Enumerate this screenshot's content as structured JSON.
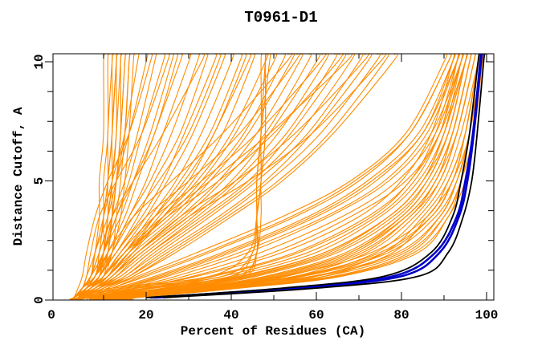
{
  "title": "T0961-D1",
  "axes": {
    "xlabel": "Percent of Residues (CA)",
    "ylabel": "Distance Cutoff, A",
    "x_tick_values_major": [
      20,
      40,
      60,
      80,
      100
    ],
    "x_tick_values_minor": [
      10,
      30,
      50,
      70,
      90
    ],
    "x_tick_labels": [
      {
        "value": 0,
        "label": "0"
      },
      {
        "value": 20,
        "label": "20"
      },
      {
        "value": 40,
        "label": "40"
      },
      {
        "value": 60,
        "label": "60"
      },
      {
        "value": 80,
        "label": "80"
      },
      {
        "value": 100,
        "label": "100"
      }
    ],
    "y_tick_values_major": [
      0,
      5,
      10
    ],
    "y_tick_values_minor": [
      1.25,
      2.5,
      3.75,
      6.25,
      7.5,
      8.75
    ],
    "y_tick_labels": [
      {
        "value": 0,
        "label": "0"
      },
      {
        "value": 5,
        "label": "5"
      },
      {
        "value": 10,
        "label": "10"
      }
    ]
  },
  "chart_data": {
    "type": "line",
    "title": "T0961-D1",
    "xlabel": "Percent of Residues (CA)",
    "ylabel": "Distance Cutoff, A",
    "xlim": [
      0,
      100
    ],
    "ylim": [
      0,
      10
    ],
    "grid": false,
    "legend": "none",
    "background": "#FFFFFF",
    "frame_color": "#000000",
    "cutoff_levels": [
      0.1,
      0.5,
      1,
      2,
      3.5,
      5,
      7,
      10
    ],
    "note": "Each curve lists percent of CA residues (x) at each distance cutoff level (y).",
    "series_groups": [
      {
        "name": "server-model-curves",
        "color": "#FF8C00",
        "width": 1.1,
        "root_at_bottom": true,
        "extend_to_top": true,
        "curves": [
          [
            3,
            5,
            7,
            8,
            9,
            9,
            10,
            10
          ],
          [
            3,
            5,
            8,
            9,
            10,
            10,
            11,
            11
          ],
          [
            4,
            6,
            8,
            10,
            10,
            11,
            11,
            12
          ],
          [
            3,
            6,
            9,
            10,
            11,
            11,
            12,
            12
          ],
          [
            4,
            7,
            9,
            10,
            11,
            12,
            12,
            13
          ],
          [
            3,
            5,
            8,
            10,
            11,
            12,
            13,
            13
          ],
          [
            4,
            6,
            9,
            11,
            12,
            12,
            13,
            14
          ],
          [
            3,
            6,
            8,
            10,
            12,
            13,
            14,
            14
          ],
          [
            4,
            7,
            10,
            11,
            12,
            13,
            14,
            15
          ],
          [
            3,
            5,
            7,
            10,
            12,
            13,
            15,
            16
          ],
          [
            4,
            6,
            9,
            12,
            13,
            14,
            15,
            16
          ],
          [
            3,
            6,
            10,
            12,
            14,
            15,
            16,
            17
          ],
          [
            3,
            5,
            8,
            9,
            10,
            11,
            12,
            13
          ],
          [
            4,
            6,
            8,
            11,
            12,
            13,
            14,
            15
          ],
          [
            3,
            5,
            6,
            8,
            10,
            12,
            15,
            18
          ],
          [
            3,
            5,
            7,
            8,
            11,
            13,
            16,
            20
          ],
          [
            4,
            6,
            7,
            9,
            12,
            15,
            18,
            22
          ],
          [
            3,
            5,
            7,
            10,
            13,
            16,
            19,
            24
          ],
          [
            4,
            6,
            8,
            10,
            14,
            17,
            21,
            26
          ],
          [
            3,
            6,
            8,
            11,
            15,
            18,
            22,
            28
          ],
          [
            4,
            6,
            9,
            12,
            16,
            20,
            24,
            30
          ],
          [
            3,
            5,
            8,
            12,
            16,
            21,
            26,
            32
          ],
          [
            4,
            7,
            9,
            13,
            18,
            22,
            28,
            34
          ],
          [
            3,
            6,
            9,
            13,
            19,
            24,
            29,
            36
          ],
          [
            4,
            6,
            10,
            14,
            20,
            25,
            31,
            38
          ],
          [
            3,
            7,
            10,
            15,
            21,
            27,
            33,
            40
          ],
          [
            4,
            6,
            11,
            16,
            22,
            28,
            35,
            42
          ],
          [
            3,
            7,
            11,
            16,
            23,
            30,
            36,
            44
          ],
          [
            4,
            8,
            12,
            17,
            24,
            31,
            38,
            45
          ],
          [
            3,
            5,
            6,
            7,
            9,
            13,
            19,
            25
          ],
          [
            4,
            5,
            7,
            9,
            12,
            17,
            24,
            33
          ],
          [
            3,
            4,
            5,
            6,
            8,
            11,
            16,
            21
          ],
          [
            3,
            6,
            8,
            12,
            17,
            23,
            30,
            37
          ],
          [
            4,
            7,
            10,
            15,
            22,
            29,
            36,
            43
          ],
          [
            3,
            5,
            7,
            10,
            13,
            17,
            22,
            27
          ],
          [
            4,
            7,
            11,
            16,
            24,
            32,
            40,
            48
          ],
          [
            5,
            20,
            40,
            45,
            46,
            46,
            47,
            47
          ],
          [
            6,
            25,
            43,
            46,
            46,
            47,
            47,
            48
          ],
          [
            4,
            15,
            38,
            45,
            46,
            47,
            47,
            48
          ],
          [
            5,
            22,
            42,
            46,
            47,
            47,
            48,
            48
          ],
          [
            4,
            18,
            41,
            46,
            46,
            46,
            47,
            49
          ],
          [
            5,
            12,
            35,
            44,
            46,
            47,
            48,
            48
          ],
          [
            4,
            7,
            10,
            15,
            25,
            33,
            41,
            50
          ],
          [
            5,
            8,
            11,
            16,
            26,
            34,
            43,
            52
          ],
          [
            4,
            7,
            11,
            17,
            27,
            35,
            44,
            54
          ],
          [
            5,
            8,
            12,
            18,
            28,
            37,
            46,
            56
          ],
          [
            4,
            8,
            12,
            18,
            29,
            38,
            48,
            58
          ],
          [
            5,
            9,
            13,
            19,
            30,
            40,
            49,
            60
          ],
          [
            4,
            8,
            13,
            20,
            31,
            41,
            51,
            62
          ],
          [
            5,
            9,
            14,
            21,
            32,
            42,
            53,
            64
          ],
          [
            4,
            8,
            14,
            21,
            33,
            44,
            54,
            66
          ],
          [
            5,
            9,
            15,
            22,
            34,
            45,
            56,
            68
          ],
          [
            4,
            10,
            15,
            23,
            35,
            46,
            58,
            70
          ],
          [
            5,
            10,
            16,
            24,
            37,
            48,
            59,
            72
          ],
          [
            4,
            9,
            16,
            25,
            38,
            49,
            61,
            74
          ],
          [
            5,
            10,
            17,
            26,
            39,
            51,
            63,
            76
          ],
          [
            4,
            11,
            17,
            27,
            40,
            52,
            64,
            78
          ],
          [
            5,
            7,
            9,
            13,
            20,
            30,
            42,
            55
          ],
          [
            4,
            8,
            11,
            16,
            25,
            37,
            50,
            65
          ],
          [
            5,
            9,
            12,
            19,
            30,
            44,
            59,
            75
          ],
          [
            4,
            7,
            10,
            14,
            22,
            33,
            46,
            61
          ],
          [
            5,
            8,
            12,
            18,
            28,
            41,
            55,
            71
          ],
          [
            4,
            6,
            8,
            11,
            17,
            26,
            38,
            53
          ],
          [
            5,
            8,
            11,
            15,
            24,
            35,
            49,
            67
          ],
          [
            8,
            20,
            35,
            55,
            72,
            82,
            88,
            93
          ],
          [
            10,
            25,
            42,
            62,
            77,
            85,
            90,
            95
          ],
          [
            12,
            30,
            48,
            67,
            80,
            87,
            92,
            96
          ],
          [
            9,
            22,
            38,
            58,
            74,
            83,
            89,
            94
          ],
          [
            11,
            28,
            45,
            64,
            78,
            86,
            91,
            95
          ],
          [
            14,
            34,
            52,
            70,
            82,
            88,
            93,
            97
          ],
          [
            8,
            18,
            32,
            52,
            70,
            80,
            87,
            92
          ],
          [
            13,
            32,
            50,
            68,
            81,
            88,
            92,
            96
          ],
          [
            10,
            26,
            44,
            63,
            77,
            85,
            90,
            94
          ],
          [
            15,
            36,
            55,
            72,
            83,
            89,
            93,
            97
          ],
          [
            9,
            24,
            40,
            60,
            75,
            84,
            90,
            95
          ],
          [
            12,
            31,
            49,
            68,
            80,
            87,
            92,
            96
          ],
          [
            16,
            38,
            57,
            74,
            84,
            90,
            94,
            98
          ],
          [
            8,
            21,
            36,
            56,
            73,
            82,
            89,
            93
          ],
          [
            11,
            29,
            46,
            65,
            79,
            86,
            91,
            95
          ],
          [
            13,
            33,
            51,
            69,
            81,
            88,
            92,
            96
          ],
          [
            17,
            40,
            60,
            76,
            85,
            91,
            95,
            98
          ],
          [
            10,
            27,
            43,
            62,
            77,
            85,
            91,
            95
          ],
          [
            14,
            35,
            53,
            71,
            82,
            89,
            93,
            97
          ],
          [
            18,
            42,
            62,
            78,
            86,
            92,
            95,
            98
          ],
          [
            6,
            12,
            20,
            35,
            55,
            70,
            82,
            91
          ],
          [
            7,
            14,
            24,
            40,
            60,
            74,
            85,
            93
          ],
          [
            6,
            13,
            22,
            38,
            58,
            72,
            84,
            92
          ],
          [
            8,
            16,
            27,
            44,
            63,
            77,
            87,
            94
          ],
          [
            7,
            15,
            25,
            42,
            62,
            76,
            86,
            93
          ],
          [
            6,
            11,
            18,
            32,
            52,
            68,
            81,
            90
          ],
          [
            8,
            17,
            29,
            47,
            66,
            79,
            88,
            94
          ],
          [
            7,
            14,
            23,
            39,
            59,
            73,
            85,
            92
          ],
          [
            9,
            18,
            31,
            50,
            68,
            81,
            89,
            95
          ],
          [
            6,
            12,
            19,
            34,
            54,
            69,
            82,
            91
          ],
          [
            10,
            30,
            55,
            75,
            87,
            92,
            95,
            98
          ],
          [
            12,
            35,
            60,
            80,
            89,
            93,
            96,
            99
          ],
          [
            15,
            40,
            65,
            83,
            91,
            94,
            97,
            99
          ],
          [
            11,
            32,
            57,
            77,
            88,
            93,
            96,
            98
          ],
          [
            13,
            37,
            62,
            81,
            90,
            94,
            96,
            99
          ],
          [
            9,
            28,
            52,
            73,
            86,
            91,
            95,
            98
          ],
          [
            14,
            38,
            64,
            82,
            90,
            94,
            97,
            99
          ],
          [
            10,
            31,
            56,
            76,
            87,
            92,
            96,
            98
          ],
          [
            16,
            42,
            66,
            84,
            91,
            95,
            97,
            99
          ],
          [
            12,
            34,
            59,
            79,
            89,
            93,
            96,
            99
          ]
        ]
      },
      {
        "name": "highlighted-model-curves",
        "color": "#0000C8",
        "width": 2.6,
        "root_at_bottom": false,
        "extend_to_top": true,
        "curves": [
          [
            22,
            56,
            80,
            89,
            93.5,
            95.5,
            97,
            98.7
          ],
          [
            21,
            54,
            78,
            88,
            93,
            95,
            96.8,
            98.5
          ]
        ]
      },
      {
        "name": "reference-model-curves",
        "color": "#000000",
        "width": 1.8,
        "root_at_bottom": false,
        "extend_to_top": true,
        "curves": [
          [
            20,
            52,
            76,
            87,
            92,
            94,
            96,
            98
          ],
          [
            24,
            60,
            84,
            91,
            94.5,
            96.5,
            97.8,
            99.3
          ]
        ]
      }
    ]
  }
}
